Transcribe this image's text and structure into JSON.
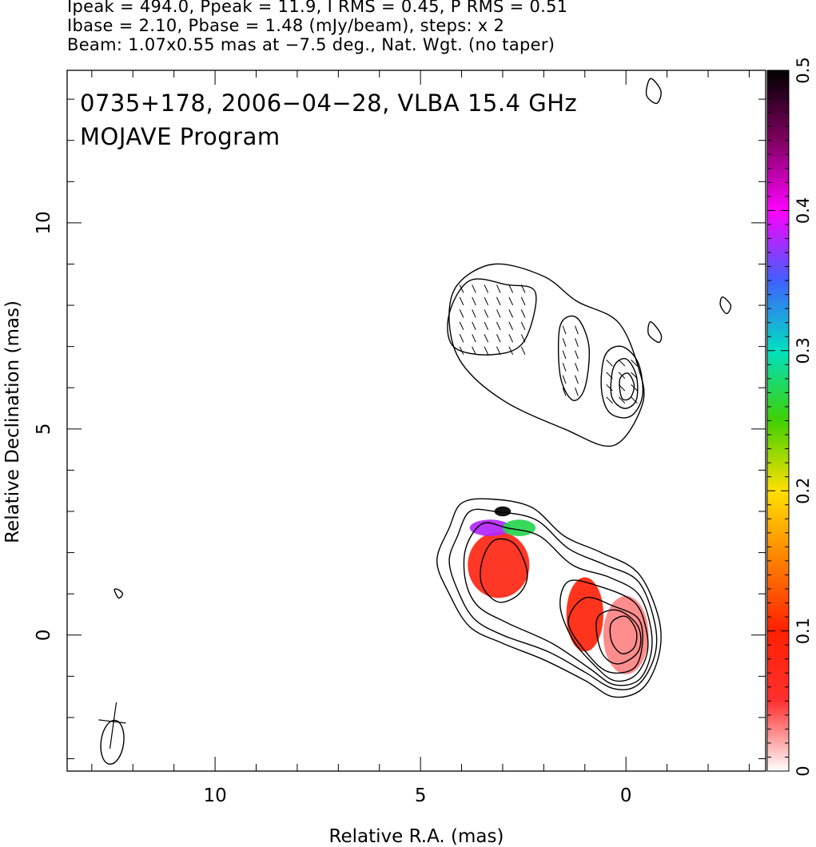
{
  "header": {
    "line1": "Ipeak = 494.0, Ppeak = 11.9, I RMS = 0.45, P RMS = 0.51",
    "line2": "Ibase = 2.10, Pbase = 1.48 (mJy/beam), steps: x 2",
    "line3": "Beam: 1.07x0.55 mas at −7.5 deg., Nat. Wgt. (no taper)"
  },
  "chart_data": {
    "type": "heatmap",
    "title": "0735+178, 2006−04−28, VLBA 15.4 GHz",
    "subtitle": "MOJAVE Program",
    "xlabel": "Relative R.A. (mas)",
    "ylabel": "Relative Declination (mas)",
    "xlim": [
      13.6,
      -3.4
    ],
    "ylim": [
      -3.3,
      13.7
    ],
    "x_ticks": [
      10,
      5,
      0
    ],
    "x_tick_labels": [
      "10",
      "5",
      "0"
    ],
    "y_ticks": [
      0,
      5,
      10
    ],
    "y_tick_labels": [
      "0",
      "5",
      "10"
    ],
    "colorbar": {
      "range": [
        0,
        0.5
      ],
      "ticks": [
        0,
        0.1,
        0.2,
        0.3,
        0.4,
        0.5
      ],
      "tick_labels": [
        "0",
        "0.1",
        "0.2",
        "0.3",
        "0.4",
        "0.5"
      ]
    },
    "beam": {
      "major_mas": 1.07,
      "minor_mas": 0.55,
      "pa_deg": -7.5,
      "x": 12.5,
      "y": -2.6
    },
    "total_intensity_contours": [
      {
        "level": 1,
        "points": [
          [
            4.3,
            2.6
          ],
          [
            4.0,
            3.2
          ],
          [
            3.3,
            3.3
          ],
          [
            2.3,
            3.1
          ],
          [
            1.5,
            2.4
          ],
          [
            0.6,
            2.0
          ],
          [
            -0.3,
            1.5
          ],
          [
            -0.8,
            0.4
          ],
          [
            -0.8,
            -0.5
          ],
          [
            -0.4,
            -1.3
          ],
          [
            0.3,
            -1.5
          ],
          [
            1.0,
            -1.1
          ],
          [
            2.0,
            -0.6
          ],
          [
            3.0,
            -0.2
          ],
          [
            3.8,
            0.2
          ],
          [
            4.3,
            1.0
          ],
          [
            4.6,
            1.8
          ]
        ]
      },
      {
        "level": 2,
        "points": [
          [
            4.1,
            2.4
          ],
          [
            3.8,
            3.0
          ],
          [
            3.2,
            3.0
          ],
          [
            2.2,
            2.8
          ],
          [
            1.4,
            2.1
          ],
          [
            0.5,
            1.7
          ],
          [
            -0.3,
            1.3
          ],
          [
            -0.7,
            0.3
          ],
          [
            -0.7,
            -0.5
          ],
          [
            -0.3,
            -1.2
          ],
          [
            0.3,
            -1.3
          ],
          [
            1.0,
            -0.9
          ],
          [
            1.9,
            -0.4
          ],
          [
            3.0,
            0.0
          ],
          [
            3.7,
            0.4
          ],
          [
            4.1,
            1.1
          ],
          [
            4.3,
            1.8
          ]
        ]
      },
      {
        "level": 3,
        "points": [
          [
            3.9,
            2.1
          ],
          [
            3.5,
            2.7
          ],
          [
            2.9,
            2.6
          ],
          [
            2.1,
            2.4
          ],
          [
            1.3,
            1.7
          ],
          [
            0.4,
            1.4
          ],
          [
            -0.3,
            1.0
          ],
          [
            -0.6,
            0.2
          ],
          [
            -0.6,
            -0.5
          ],
          [
            -0.3,
            -1.1
          ],
          [
            0.3,
            -1.2
          ],
          [
            0.9,
            -0.8
          ],
          [
            1.8,
            -0.2
          ],
          [
            2.9,
            0.3
          ],
          [
            3.6,
            0.7
          ],
          [
            3.9,
            1.3
          ]
        ]
      },
      {
        "level": 4,
        "points": [
          [
            1.6,
            0.7
          ],
          [
            1.4,
            1.3
          ],
          [
            0.7,
            1.2
          ],
          [
            -0.2,
            0.8
          ],
          [
            -0.5,
            0.1
          ],
          [
            -0.5,
            -0.5
          ],
          [
            -0.2,
            -1.0
          ],
          [
            0.3,
            -1.1
          ],
          [
            0.8,
            -0.7
          ],
          [
            1.3,
            -0.1
          ]
        ]
      },
      {
        "level": 5,
        "points": [
          [
            1.4,
            0.3
          ],
          [
            1.0,
            0.9
          ],
          [
            0.3,
            0.7
          ],
          [
            -0.3,
            0.4
          ],
          [
            -0.4,
            -0.2
          ],
          [
            -0.2,
            -0.8
          ],
          [
            0.4,
            -0.9
          ],
          [
            0.9,
            -0.5
          ]
        ]
      },
      {
        "level": 6,
        "points": [
          [
            0.7,
            0.4
          ],
          [
            0.2,
            0.6
          ],
          [
            -0.3,
            0.2
          ],
          [
            -0.3,
            -0.4
          ],
          [
            0.2,
            -0.7
          ],
          [
            0.6,
            -0.4
          ]
        ]
      },
      {
        "level": 7,
        "points": [
          [
            0.35,
            0.3
          ],
          [
            0.0,
            0.45
          ],
          [
            -0.25,
            0.1
          ],
          [
            -0.2,
            -0.3
          ],
          [
            0.1,
            -0.45
          ],
          [
            0.35,
            -0.15
          ]
        ]
      },
      {
        "level": 8,
        "points": [
          [
            3.5,
            1.8
          ],
          [
            3.2,
            2.3
          ],
          [
            2.7,
            2.2
          ],
          [
            2.4,
            1.5
          ],
          [
            2.6,
            1.0
          ],
          [
            3.1,
            0.8
          ],
          [
            3.5,
            1.2
          ]
        ]
      },
      {
        "level": 9,
        "points": [
          [
            4.3,
            7.6
          ],
          [
            4.1,
            8.5
          ],
          [
            3.2,
            9.0
          ],
          [
            2.0,
            8.7
          ],
          [
            1.2,
            8.1
          ],
          [
            0.2,
            7.6
          ],
          [
            -0.3,
            6.5
          ],
          [
            -0.4,
            5.6
          ],
          [
            0.3,
            4.6
          ],
          [
            1.5,
            5.0
          ],
          [
            3.0,
            5.7
          ],
          [
            4.0,
            6.6
          ]
        ]
      },
      {
        "level": 10,
        "points": [
          [
            4.3,
            7.8
          ],
          [
            3.8,
            8.6
          ],
          [
            2.9,
            8.5
          ],
          [
            2.2,
            8.3
          ],
          [
            2.5,
            7.1
          ],
          [
            3.3,
            6.8
          ],
          [
            4.2,
            7.0
          ]
        ]
      },
      {
        "level": 11,
        "points": [
          [
            1.6,
            7.5
          ],
          [
            1.2,
            7.7
          ],
          [
            0.9,
            7.0
          ],
          [
            1.0,
            6.0
          ],
          [
            1.3,
            5.7
          ],
          [
            1.6,
            6.3
          ]
        ]
      },
      {
        "level": 12,
        "points": [
          [
            0.5,
            6.8
          ],
          [
            0.1,
            7.0
          ],
          [
            -0.3,
            6.6
          ],
          [
            -0.4,
            5.8
          ],
          [
            -0.1,
            5.3
          ],
          [
            0.4,
            5.4
          ],
          [
            0.6,
            6.0
          ]
        ]
      },
      {
        "level": 13,
        "points": [
          [
            0.3,
            6.5
          ],
          [
            0.0,
            6.7
          ],
          [
            -0.25,
            6.3
          ],
          [
            -0.25,
            5.7
          ],
          [
            0.05,
            5.5
          ],
          [
            0.35,
            5.8
          ]
        ]
      },
      {
        "level": 14,
        "points": [
          [
            0.15,
            6.2
          ],
          [
            -0.05,
            6.35
          ],
          [
            -0.2,
            6.05
          ],
          [
            -0.1,
            5.75
          ],
          [
            0.1,
            5.75
          ]
        ]
      },
      {
        "level": 15,
        "points": [
          [
            -0.6,
            13.5
          ],
          [
            -0.85,
            13.2
          ],
          [
            -0.75,
            12.9
          ],
          [
            -0.5,
            13.1
          ]
        ]
      },
      {
        "level": 16,
        "points": [
          [
            -0.6,
            7.6
          ],
          [
            -0.85,
            7.3
          ],
          [
            -0.8,
            7.1
          ],
          [
            -0.55,
            7.3
          ]
        ]
      },
      {
        "level": 17,
        "points": [
          [
            -2.35,
            8.2
          ],
          [
            -2.55,
            8.0
          ],
          [
            -2.45,
            7.8
          ],
          [
            -2.3,
            8.0
          ]
        ]
      },
      {
        "level": 18,
        "points": [
          [
            12.45,
            1.1
          ],
          [
            12.35,
            0.9
          ],
          [
            12.25,
            1.0
          ],
          [
            12.35,
            1.1
          ]
        ]
      }
    ],
    "polarization_patches": [
      {
        "x": 3.1,
        "y": 1.7,
        "rx": 0.75,
        "ry": 0.8,
        "frac": 0.08
      },
      {
        "x": 3.3,
        "y": 2.6,
        "rx": 0.5,
        "ry": 0.2,
        "frac": 0.38
      },
      {
        "x": 2.6,
        "y": 2.6,
        "rx": 0.4,
        "ry": 0.2,
        "frac": 0.27
      },
      {
        "x": 3.0,
        "y": 3.0,
        "rx": 0.2,
        "ry": 0.12,
        "frac": 0.5
      },
      {
        "x": 1.0,
        "y": 0.5,
        "rx": 0.45,
        "ry": 0.9,
        "frac": 0.09
      },
      {
        "x": 0.0,
        "y": 0.0,
        "rx": 0.55,
        "ry": 0.95,
        "frac": 0.03
      }
    ]
  }
}
